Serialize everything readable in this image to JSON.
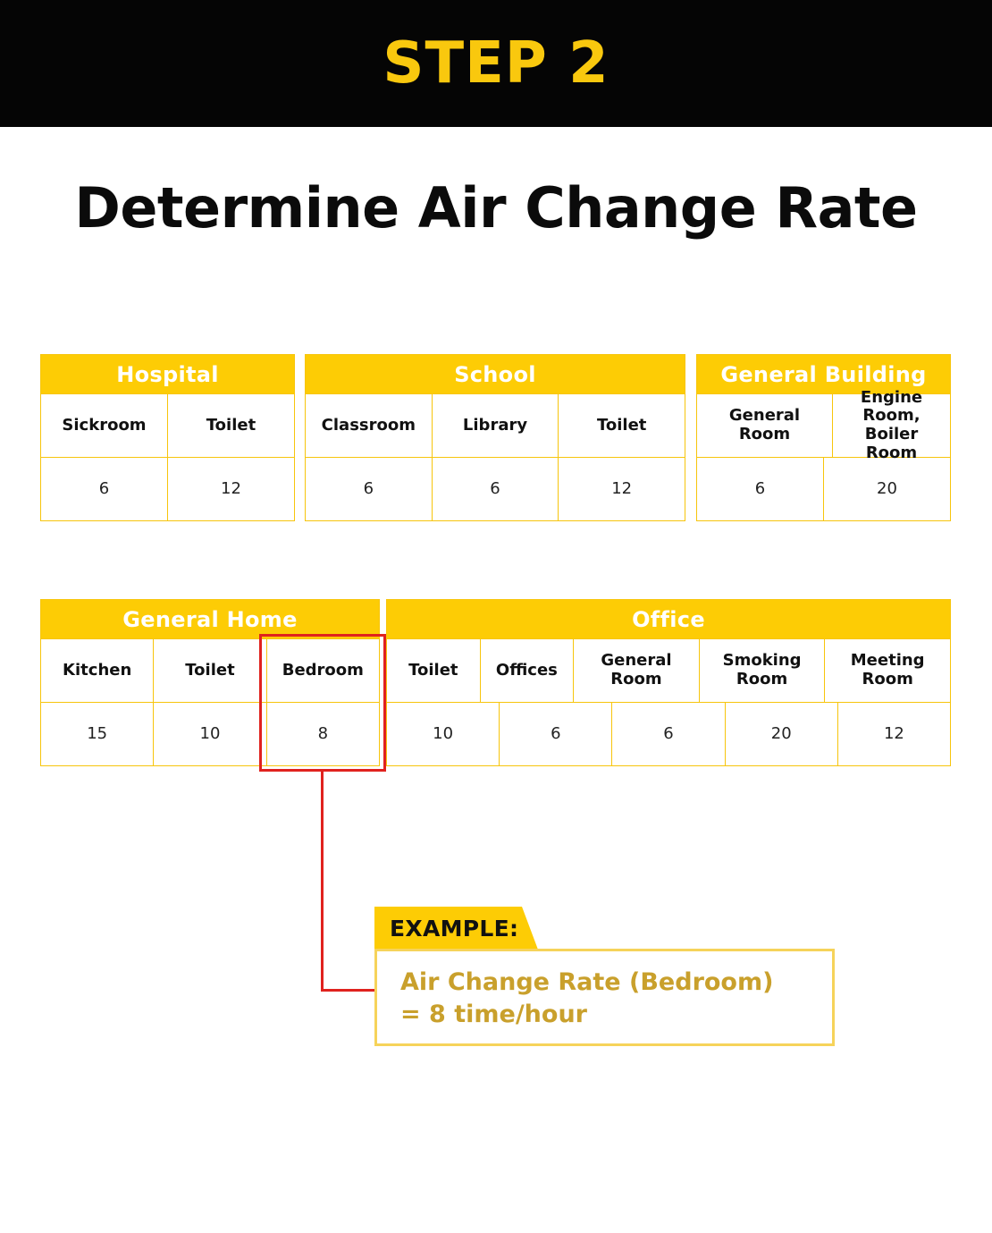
{
  "header": {
    "step": "STEP 2"
  },
  "title": "Determine Air Change Rate",
  "tables": {
    "hospital": {
      "title": "Hospital",
      "labels": [
        "Sickroom",
        "Toilet"
      ],
      "values": [
        "6",
        "12"
      ]
    },
    "school": {
      "title": "School",
      "labels": [
        "Classroom",
        "Library",
        "Toilet"
      ],
      "values": [
        "6",
        "6",
        "12"
      ]
    },
    "general_building": {
      "title": "General Building",
      "labels": [
        "General Room",
        "Engine Room, Boiler Room"
      ],
      "values": [
        "6",
        "20"
      ]
    },
    "general_home": {
      "title": "General Home",
      "labels": [
        "Kitchen",
        "Toilet",
        "Bedroom"
      ],
      "values": [
        "15",
        "10",
        "8"
      ]
    },
    "office": {
      "title": "Office",
      "labels": [
        "Toilet",
        "Offices",
        "General Room",
        "Smoking Room",
        "Meeting Room"
      ],
      "values": [
        "10",
        "6",
        "6",
        "20",
        "12"
      ]
    }
  },
  "example": {
    "tab": "EXAMPLE:",
    "line1": "Air Change Rate (Bedroom)",
    "line2": "= 8 time/hour"
  },
  "colors": {
    "accent": "#fdcc05",
    "highlight": "#e0221e",
    "example_text": "#c9a02c",
    "header_bg": "#050505"
  }
}
